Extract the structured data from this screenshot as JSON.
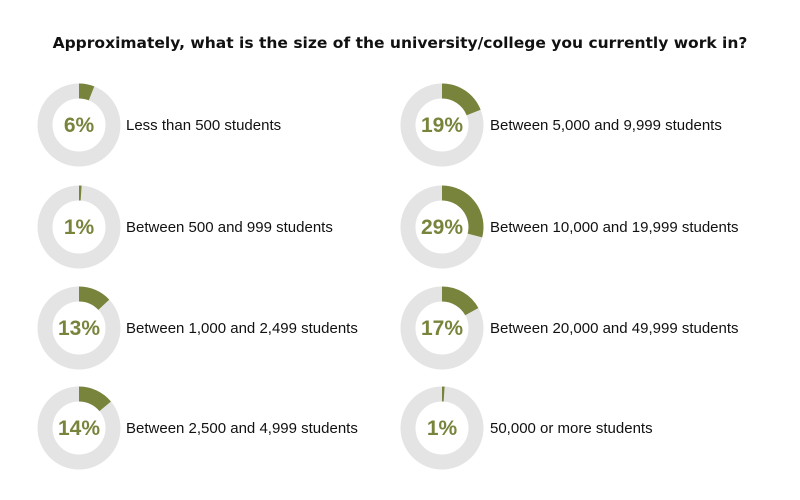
{
  "colors": {
    "accent": "#78843c",
    "track": "#e4e4e4"
  },
  "chart_data": {
    "type": "donut",
    "title": "Approximately, what is the size of the university/college you currently work in?",
    "categories": [
      "Less than 500 students",
      "Between 500 and 999 students",
      "Between 1,000 and 2,499 students",
      "Between 2,500 and 4,999 students",
      "Between 5,000 and 9,999 students",
      "Between 10,000 and 19,999 students",
      "Between 20,000 and 49,999 students",
      "50,000 or more students"
    ],
    "values": [
      6,
      1,
      13,
      14,
      19,
      29,
      17,
      1
    ],
    "value_labels": [
      "6%",
      "1%",
      "13%",
      "14%",
      "19%",
      "29%",
      "17%",
      "1%"
    ],
    "unit": "%"
  }
}
